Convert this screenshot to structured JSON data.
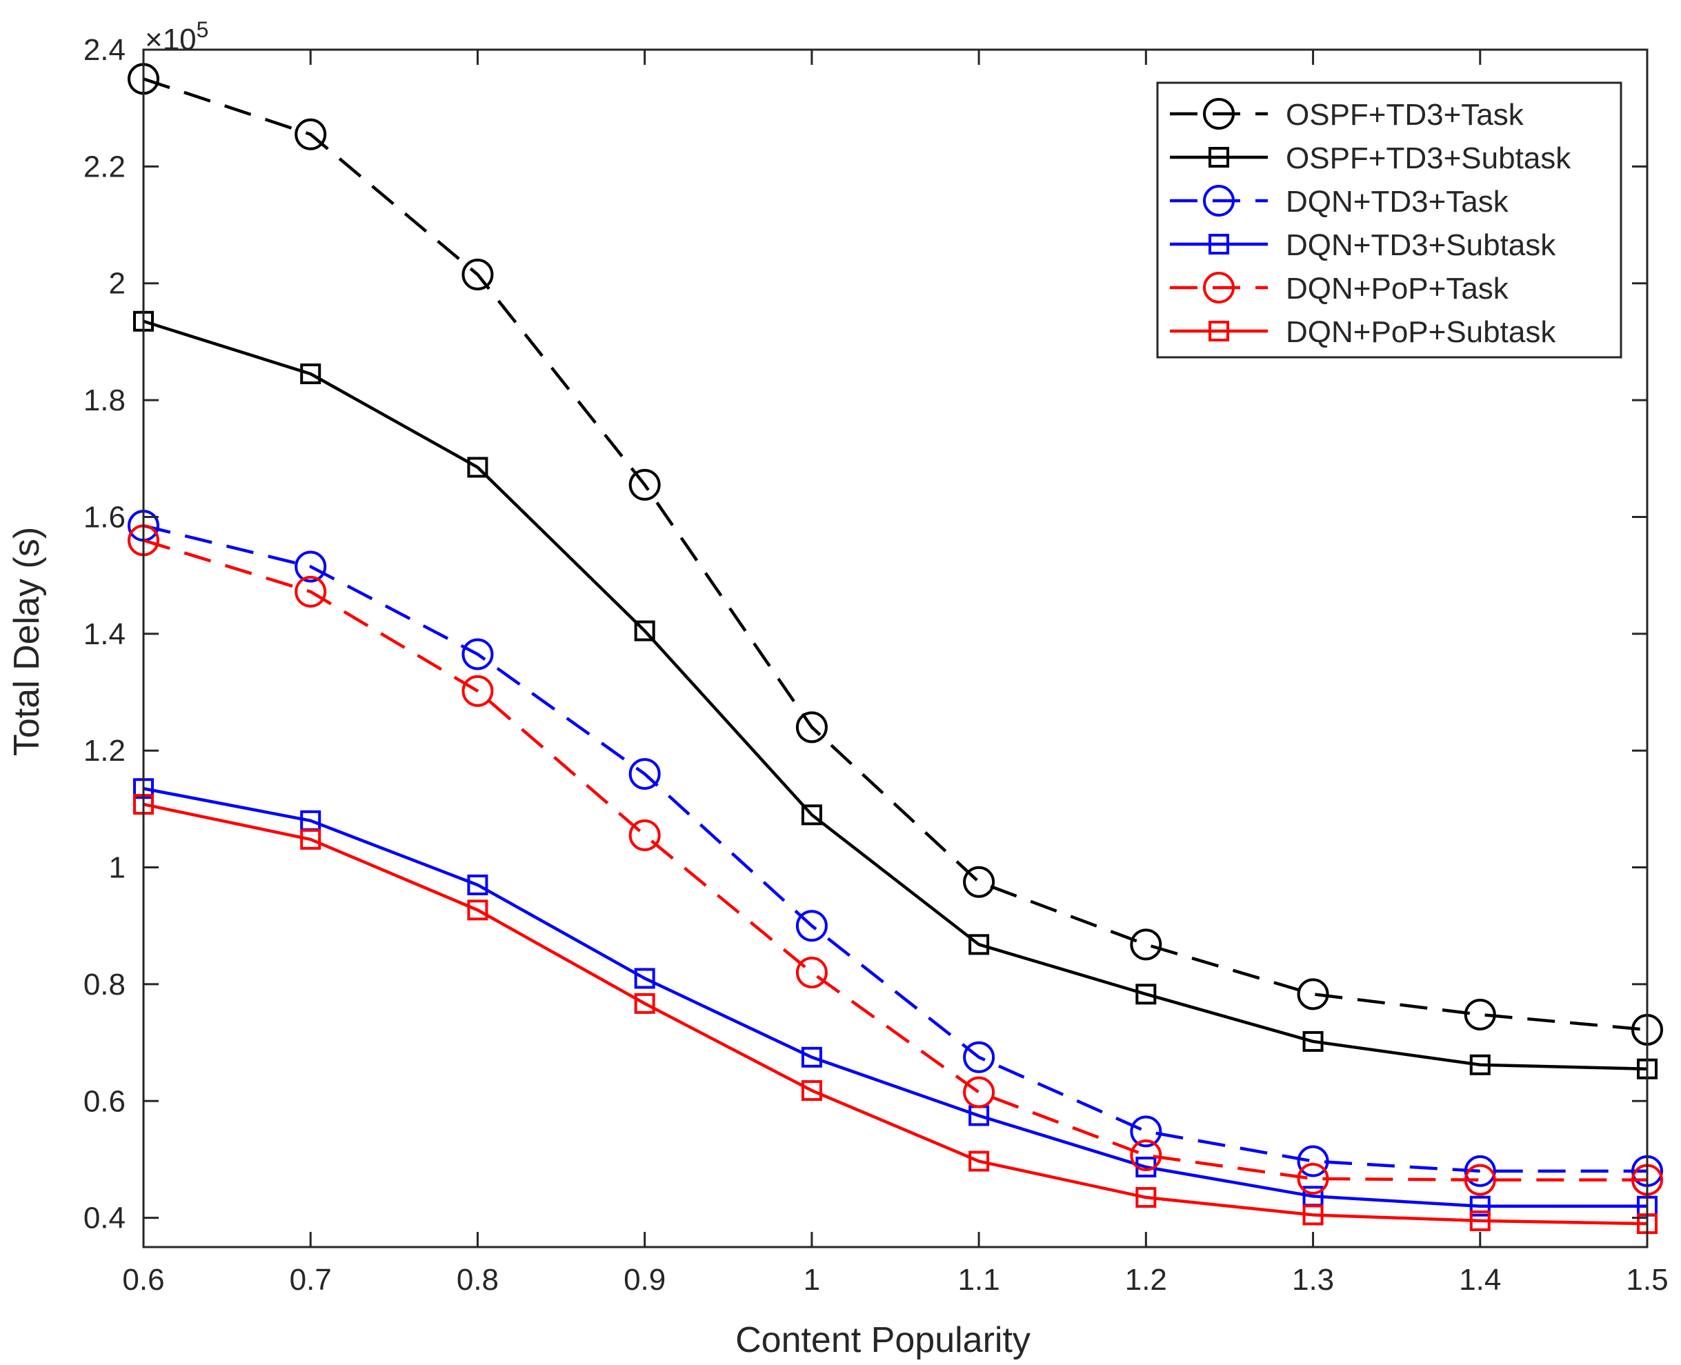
{
  "chart_data": {
    "type": "line",
    "title": "",
    "xlabel": "Content Popularity",
    "ylabel": "Total Delay (s)",
    "y_exponent_label": "×10",
    "y_exponent_power": "5",
    "y_scale": 100000,
    "xlim": [
      0.6,
      1.5
    ],
    "ylim": [
      0.35,
      2.4
    ],
    "x": [
      0.6,
      0.7,
      0.8,
      0.9,
      1.0,
      1.1,
      1.2,
      1.3,
      1.4,
      1.5
    ],
    "xticks": [
      0.6,
      0.7,
      0.8,
      0.9,
      1.0,
      1.1,
      1.2,
      1.3,
      1.4,
      1.5
    ],
    "xtick_labels": [
      "0.6",
      "0.7",
      "0.8",
      "0.9",
      "1",
      "1.1",
      "1.2",
      "1.3",
      "1.4",
      "1.5"
    ],
    "yticks": [
      0.4,
      0.6,
      0.8,
      1.0,
      1.2,
      1.4,
      1.6,
      1.8,
      2.0,
      2.2,
      2.4
    ],
    "ytick_labels": [
      "0.4",
      "0.6",
      "0.8",
      "1",
      "1.2",
      "1.4",
      "1.6",
      "1.8",
      "2",
      "2.2",
      "2.4"
    ],
    "grid": false,
    "legend_position": "top-right",
    "series": [
      {
        "name": "OSPF+TD3+Task",
        "color": "#000000",
        "dashed": true,
        "marker": "circle",
        "values": [
          2.35,
          2.255,
          2.015,
          1.655,
          1.24,
          0.975,
          0.868,
          0.783,
          0.748,
          0.722
        ]
      },
      {
        "name": "OSPF+TD3+Subtask",
        "color": "#000000",
        "dashed": false,
        "marker": "square",
        "values": [
          1.935,
          1.845,
          1.685,
          1.405,
          1.09,
          0.868,
          0.783,
          0.702,
          0.662,
          0.655
        ]
      },
      {
        "name": "DQN+TD3+Task",
        "color": "#0000ff",
        "dashed": true,
        "marker": "circle",
        "values": [
          1.585,
          1.515,
          1.365,
          1.16,
          0.9,
          0.675,
          0.548,
          0.497,
          0.48,
          0.48
        ]
      },
      {
        "name": "DQN+TD3+Subtask",
        "color": "#0000ff",
        "dashed": false,
        "marker": "square",
        "values": [
          1.135,
          1.08,
          0.97,
          0.81,
          0.675,
          0.575,
          0.487,
          0.437,
          0.42,
          0.42
        ]
      },
      {
        "name": "DQN+PoP+Task",
        "color": "#ff0000",
        "dashed": true,
        "marker": "circle",
        "values": [
          1.56,
          1.472,
          1.302,
          1.055,
          0.82,
          0.615,
          0.507,
          0.467,
          0.465,
          0.465
        ]
      },
      {
        "name": "DQN+PoP+Subtask",
        "color": "#ff0000",
        "dashed": false,
        "marker": "square",
        "values": [
          1.108,
          1.048,
          0.927,
          0.767,
          0.618,
          0.497,
          0.435,
          0.405,
          0.395,
          0.39
        ]
      }
    ]
  }
}
